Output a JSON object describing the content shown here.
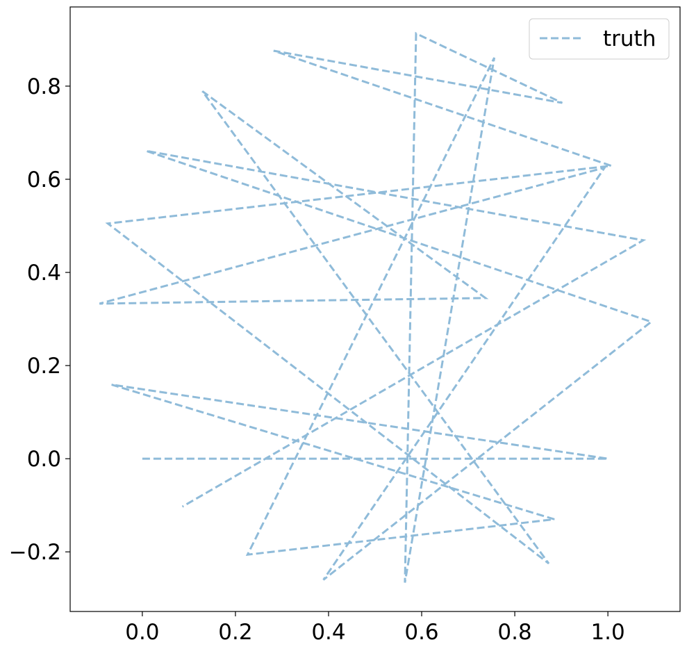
{
  "chart_data": {
    "type": "line",
    "title": "",
    "xlabel": "",
    "ylabel": "",
    "xlim": [
      -0.155,
      1.155
    ],
    "ylim": [
      -0.328,
      0.97
    ],
    "xticks": [
      0.0,
      0.2,
      0.4,
      0.6,
      0.8,
      1.0
    ],
    "xtick_labels": [
      "0.0",
      "0.2",
      "0.4",
      "0.6",
      "0.8",
      "1.0"
    ],
    "yticks": [
      -0.2,
      0.0,
      0.2,
      0.4,
      0.6,
      0.8
    ],
    "ytick_labels": [
      "−0.2",
      "0.0",
      "0.2",
      "0.4",
      "0.6",
      "0.8"
    ],
    "grid": false,
    "legend_position": "top-right",
    "series": [
      {
        "name": "truth",
        "color": "#1f77b4",
        "alpha": 0.5,
        "linestyle": "dashed",
        "x": [
          0.0,
          1.0,
          -0.066,
          0.885,
          0.226,
          0.756,
          0.564,
          0.588,
          0.902,
          0.282,
          1.007,
          -0.074,
          0.873,
          0.129,
          0.737,
          -0.092,
          0.993,
          0.389,
          1.093,
          0.008,
          1.076,
          0.086
        ],
        "y": [
          0.0,
          0.0,
          0.159,
          -0.13,
          -0.206,
          0.861,
          -0.266,
          0.913,
          0.764,
          0.876,
          0.629,
          0.505,
          -0.225,
          0.789,
          0.345,
          0.333,
          0.625,
          -0.26,
          0.294,
          0.661,
          0.469,
          -0.103
        ]
      }
    ]
  }
}
